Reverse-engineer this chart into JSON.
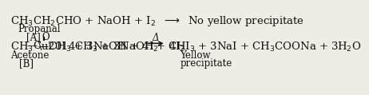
{
  "background_color": "#eeede5",
  "line1": "CH$_3$CH$_2$CHO + NaOH + I$_2$",
  "arrow1": "⟶",
  "line1_right": "No yellow precipitate",
  "propanal": "Propanal",
  "label_A": "[A]",
  "label_O": "O",
  "acetone_left": "CH$_3$",
  "dash": "—",
  "acetone_C": "C",
  "acetone_right": "CH$_3$ + 3NaOH + 4I$_2$",
  "delta": "Δ",
  "products": "CHI$_3$ + 3NaI + CH$_3$COONa + 3H$_2$O",
  "acetone_label": "Acetone",
  "yellow": "Yellow",
  "label_B": "[B]",
  "precipitate": "precipitate",
  "fs_main": 9.5,
  "fs_small": 8.5,
  "text_color": "#111111"
}
